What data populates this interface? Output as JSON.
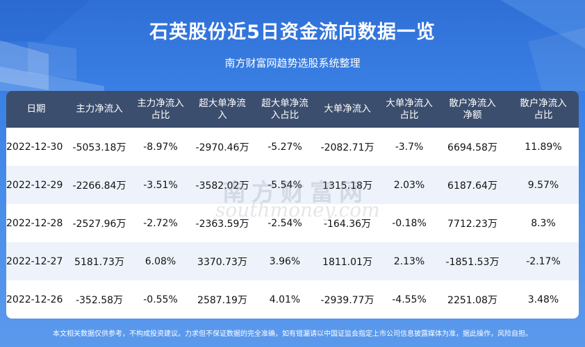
{
  "header": {
    "title": "石英股份近5日资金流向数据一览",
    "subtitle": "南方财富网趋势选股系统整理"
  },
  "table": {
    "columns": [
      "日期",
      "主力净流入",
      "主力净流入\n占比",
      "超大单净流\n入",
      "超大单净流\n入占比",
      "大单净流入",
      "大单净流入\n占比",
      "散户净流入\n净额",
      "散户净流入\n占比"
    ],
    "rows": [
      [
        "2022-12-30",
        "-5053.18万",
        "-8.97%",
        "-2970.46万",
        "-5.27%",
        "-2082.71万",
        "-3.7%",
        "6694.58万",
        "11.89%"
      ],
      [
        "2022-12-29",
        "-2266.84万",
        "-3.51%",
        "-3582.02万",
        "-5.54%",
        "1315.18万",
        "2.03%",
        "6187.64万",
        "9.57%"
      ],
      [
        "2022-12-28",
        "-2527.96万",
        "-2.72%",
        "-2363.59万",
        "-2.54%",
        "-164.36万",
        "-0.18%",
        "7712.23万",
        "8.3%"
      ],
      [
        "2022-12-27",
        "5181.73万",
        "6.08%",
        "3370.73万",
        "3.96%",
        "1811.01万",
        "2.13%",
        "-1851.53万",
        "-2.17%"
      ],
      [
        "2022-12-26",
        "-352.58万",
        "-0.55%",
        "2587.19万",
        "4.01%",
        "-2939.77万",
        "-4.55%",
        "2251.08万",
        "3.48%"
      ]
    ]
  },
  "watermark": {
    "cn": "南方财富网",
    "en": "southmoney.com"
  },
  "footer": {
    "disclaimer": "本文相关数据仅供参考，不构成投资建议。力求但不保证数据的完全准确，如有错漏请以中国证监会指定上市公司信息披露媒体为准，据此操作，风险自担。"
  },
  "colors": {
    "background": "#3b82e6",
    "table_header": "#3c4e6e",
    "row_alt": "#eef3fb"
  }
}
